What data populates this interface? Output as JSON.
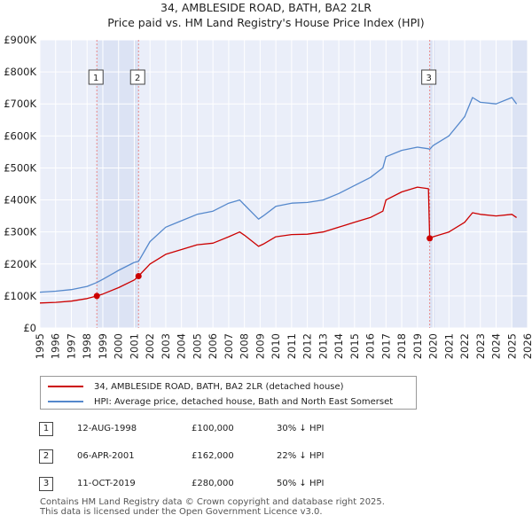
{
  "chart_data": {
    "type": "line",
    "title": "34, AMBLESIDE ROAD, BATH, BA2 2LR",
    "subtitle": "Price paid vs. HM Land Registry's House Price Index (HPI)",
    "xlabel": "",
    "ylabel": "",
    "xlim": [
      1995,
      2026
    ],
    "ylim": [
      0,
      900000
    ],
    "yticks": [
      0,
      100000,
      200000,
      300000,
      400000,
      500000,
      600000,
      700000,
      800000,
      900000
    ],
    "ytick_labels": [
      "£0",
      "£100K",
      "£200K",
      "£300K",
      "£400K",
      "£500K",
      "£600K",
      "£700K",
      "£800K",
      "£900K"
    ],
    "xtick_labels": [
      "1995",
      "1996",
      "1997",
      "1998",
      "1999",
      "2000",
      "2001",
      "2002",
      "2003",
      "2004",
      "2005",
      "2006",
      "2007",
      "2008",
      "2009",
      "2010",
      "2011",
      "2012",
      "2013",
      "2014",
      "2015",
      "2016",
      "2017",
      "2018",
      "2019",
      "2020",
      "2021",
      "2022",
      "2023",
      "2024",
      "2025",
      "2026"
    ],
    "grid": true,
    "series": [
      {
        "name": "34, AMBLESIDE ROAD, BATH, BA2 2LR (detached house)",
        "color": "#cc0000",
        "x": [
          1995,
          1996,
          1997,
          1998,
          1998.62,
          1999,
          2000,
          2001,
          2001.27,
          2002,
          2003,
          2004,
          2005,
          2006,
          2007,
          2007.7,
          2008,
          2008.9,
          2009.2,
          2010,
          2011,
          2012,
          2013,
          2014,
          2015,
          2016,
          2016.8,
          2017,
          2018,
          2019,
          2019.7,
          2019.78,
          2020,
          2021,
          2022,
          2022.5,
          2023,
          2024,
          2025,
          2025.3
        ],
        "values": [
          78000,
          80000,
          84000,
          92000,
          100000,
          106000,
          126000,
          150000,
          162000,
          200000,
          230000,
          245000,
          260000,
          265000,
          285000,
          300000,
          290000,
          255000,
          262000,
          285000,
          292000,
          293000,
          300000,
          315000,
          330000,
          345000,
          365000,
          400000,
          425000,
          440000,
          435000,
          280000,
          285000,
          300000,
          330000,
          360000,
          355000,
          350000,
          355000,
          345000
        ]
      },
      {
        "name": "HPI: Average price, detached house, Bath and North East Somerset",
        "color": "#5588cc",
        "x": [
          1995,
          1996,
          1997,
          1998,
          1998.62,
          1999,
          2000,
          2001,
          2001.27,
          2002,
          2003,
          2004,
          2005,
          2006,
          2007,
          2007.7,
          2008,
          2008.9,
          2009.2,
          2010,
          2011,
          2012,
          2013,
          2014,
          2015,
          2016,
          2016.8,
          2017,
          2018,
          2019,
          2019.7,
          2019.78,
          2020,
          2021,
          2022,
          2022.5,
          2023,
          2024,
          2025,
          2025.3
        ],
        "values": [
          112000,
          115000,
          120000,
          130000,
          142000,
          152000,
          180000,
          205000,
          208000,
          270000,
          315000,
          335000,
          355000,
          365000,
          390000,
          400000,
          385000,
          340000,
          350000,
          380000,
          390000,
          392000,
          400000,
          420000,
          445000,
          470000,
          500000,
          535000,
          555000,
          565000,
          560000,
          558000,
          570000,
          600000,
          660000,
          720000,
          705000,
          700000,
          720000,
          700000
        ]
      }
    ],
    "sales": [
      {
        "label": "1",
        "x": 1998.62,
        "value": 100000
      },
      {
        "label": "2",
        "x": 2001.27,
        "value": 162000
      },
      {
        "label": "3",
        "x": 2019.78,
        "value": 280000
      }
    ],
    "annotations": [
      {
        "label": "1",
        "x": 1998.62
      },
      {
        "label": "2",
        "x": 2001.27
      },
      {
        "label": "3",
        "x": 2019.78
      }
    ],
    "shaded_regions": [
      {
        "from": 1998.62,
        "to": 2001.27
      },
      {
        "from": 2019.78,
        "to": 2020.1
      },
      {
        "from": 2025.0,
        "to": 2026
      }
    ],
    "colors": {
      "background": "#eaeef9",
      "grid": "#ffffff",
      "sale_line": "#cc0000",
      "hpi_line": "#5588cc",
      "vline": "#e88888"
    }
  },
  "legend": {
    "items": [
      {
        "label": "34, AMBLESIDE ROAD, BATH, BA2 2LR (detached house)",
        "color": "#cc0000"
      },
      {
        "label": "HPI: Average price, detached house, Bath and North East Somerset",
        "color": "#5588cc"
      }
    ]
  },
  "sales_table": [
    {
      "num": "1",
      "date": "12-AUG-1998",
      "price": "£100,000",
      "hpi": "30% ↓ HPI"
    },
    {
      "num": "2",
      "date": "06-APR-2001",
      "price": "£162,000",
      "hpi": "22% ↓ HPI"
    },
    {
      "num": "3",
      "date": "11-OCT-2019",
      "price": "£280,000",
      "hpi": "50% ↓ HPI"
    }
  ],
  "footer": {
    "line1": "Contains HM Land Registry data © Crown copyright and database right 2025.",
    "line2": "This data is licensed under the Open Government Licence v3.0."
  }
}
